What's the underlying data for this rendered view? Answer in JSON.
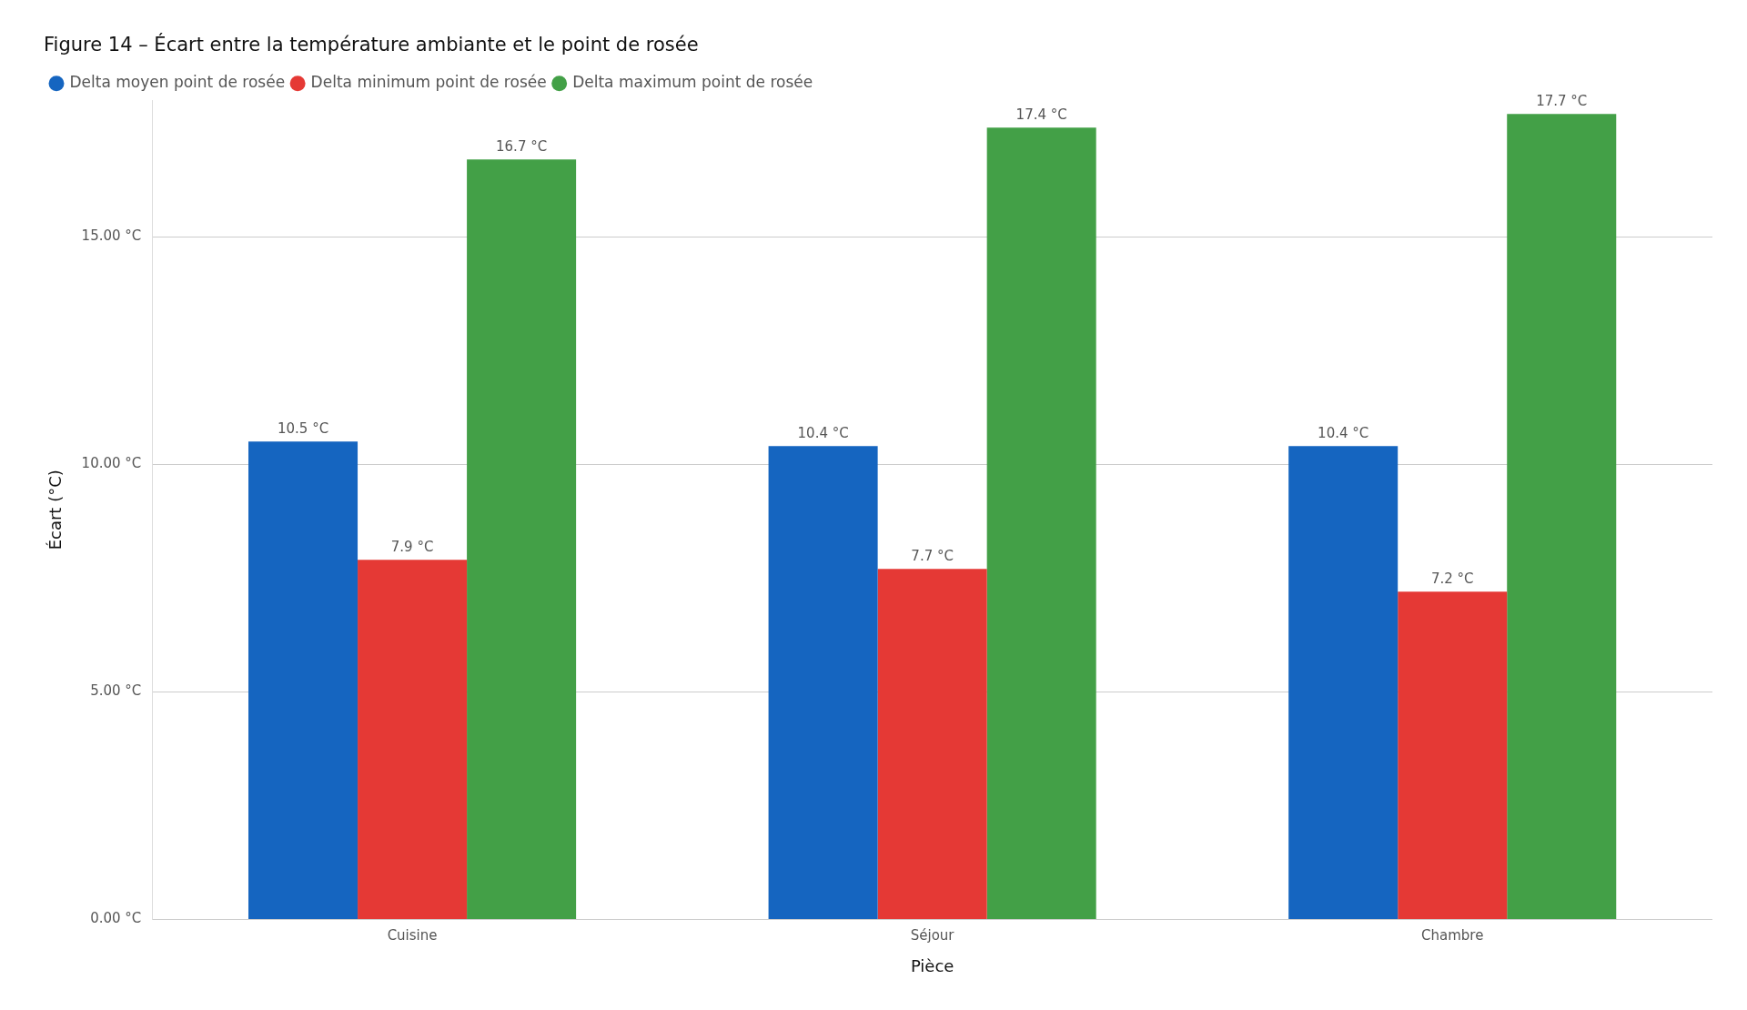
{
  "chart_data": {
    "type": "bar",
    "title": "Figure 14 – Écart entre la température ambiante et le point de rosée",
    "xlabel": "Pièce",
    "ylabel": "Écart (°C)",
    "categories": [
      "Cuisine",
      "Séjour",
      "Chambre"
    ],
    "series": [
      {
        "name": "Delta moyen point de rosée",
        "color": "#1565c0",
        "values": [
          10.5,
          10.4,
          10.4
        ],
        "value_labels": [
          "10.5 °C",
          "10.4 °C",
          "10.4 °C"
        ]
      },
      {
        "name": "Delta minimum point de rosée",
        "color": "#e53935",
        "values": [
          7.9,
          7.7,
          7.2
        ],
        "value_labels": [
          "7.9 °C",
          "7.7 °C",
          "7.2 °C"
        ]
      },
      {
        "name": "Delta maximum point de rosée",
        "color": "#43a047",
        "values": [
          16.7,
          17.4,
          17.7
        ],
        "value_labels": [
          "16.7 °C",
          "17.4 °C",
          "17.7 °C"
        ]
      }
    ],
    "ylim": [
      0,
      18
    ],
    "yticks": [
      {
        "value": 0,
        "label": "0.00 °C"
      },
      {
        "value": 5,
        "label": "5.00 °C"
      },
      {
        "value": 10,
        "label": "10.00 °C"
      },
      {
        "value": 15,
        "label": "15.00 °C"
      }
    ],
    "grid": "y",
    "legend": "top left"
  }
}
